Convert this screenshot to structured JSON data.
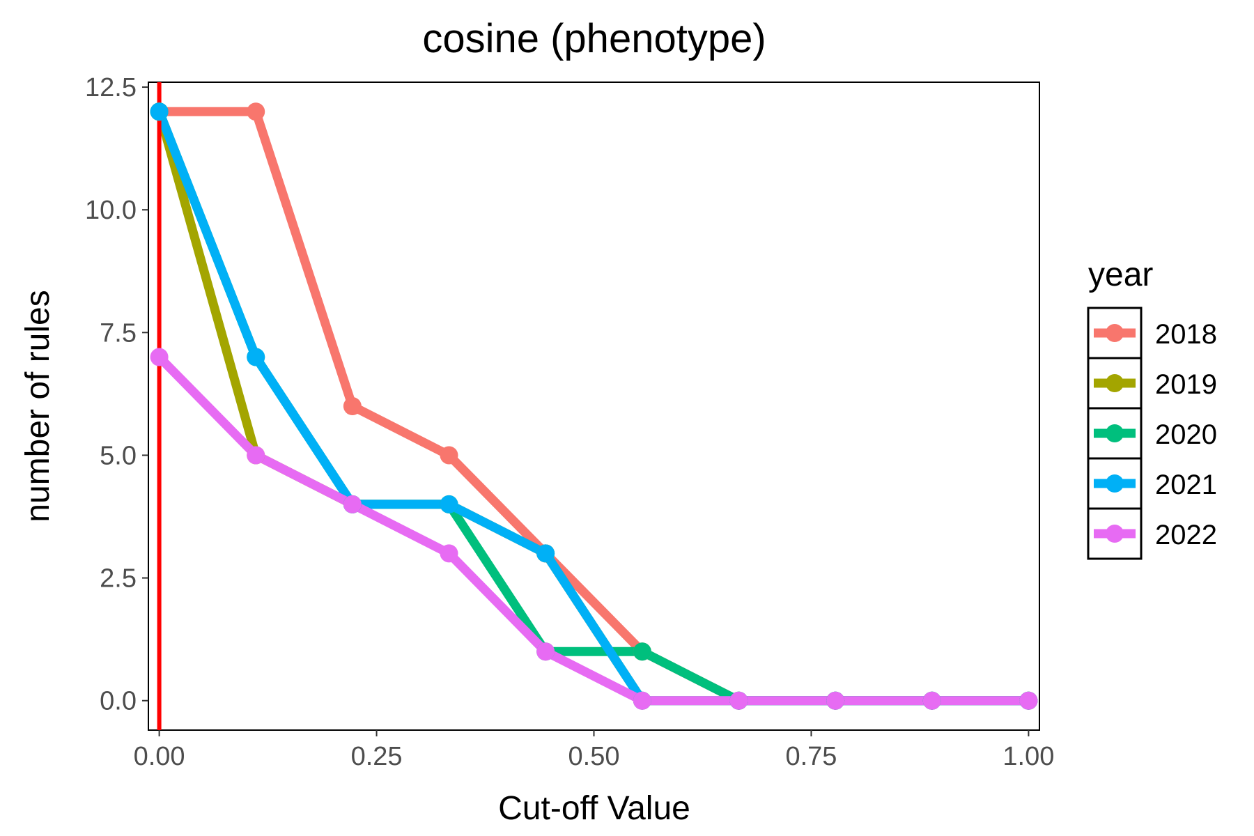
{
  "chart_data": {
    "type": "line",
    "title": "cosine (phenotype)",
    "xlabel": "Cut-off Value",
    "ylabel": "number of rules",
    "xlim": [
      -0.0125,
      1.0125
    ],
    "ylim": [
      -0.6,
      12.6
    ],
    "xticks": [
      0,
      0.25,
      0.5,
      0.75,
      1
    ],
    "xtick_labels": [
      "0.00",
      "0.25",
      "0.50",
      "0.75",
      "1.00"
    ],
    "yticks": [
      0,
      2.5,
      5,
      7.5,
      10,
      12.5
    ],
    "ytick_labels": [
      "0.0",
      "2.5",
      "5.0",
      "7.5",
      "10.0",
      "12.5"
    ],
    "grid": false,
    "reference_line": {
      "x": 0,
      "color": "#ff0000"
    },
    "legend": {
      "title": "year",
      "position": "right"
    },
    "x": [
      0,
      0.1111,
      0.2222,
      0.3333,
      0.4444,
      0.5556,
      0.6667,
      0.7778,
      0.8889,
      1.0
    ],
    "series": [
      {
        "name": "2018",
        "color": "#f8766d",
        "values": [
          12,
          12,
          6,
          5,
          3,
          1,
          0,
          0,
          0,
          0
        ]
      },
      {
        "name": "2019",
        "color": "#a3a500",
        "values": [
          12,
          5,
          4,
          4,
          3,
          0,
          0,
          0,
          0,
          0
        ]
      },
      {
        "name": "2020",
        "color": "#00bf7d",
        "values": [
          12,
          7,
          4,
          4,
          1,
          1,
          0,
          0,
          0,
          0
        ]
      },
      {
        "name": "2021",
        "color": "#00b0f6",
        "values": [
          12,
          7,
          4,
          4,
          3,
          0,
          0,
          0,
          0,
          0
        ]
      },
      {
        "name": "2022",
        "color": "#e76bf3",
        "values": [
          7,
          5,
          4,
          3,
          1,
          0,
          0,
          0,
          0,
          0
        ]
      }
    ]
  }
}
